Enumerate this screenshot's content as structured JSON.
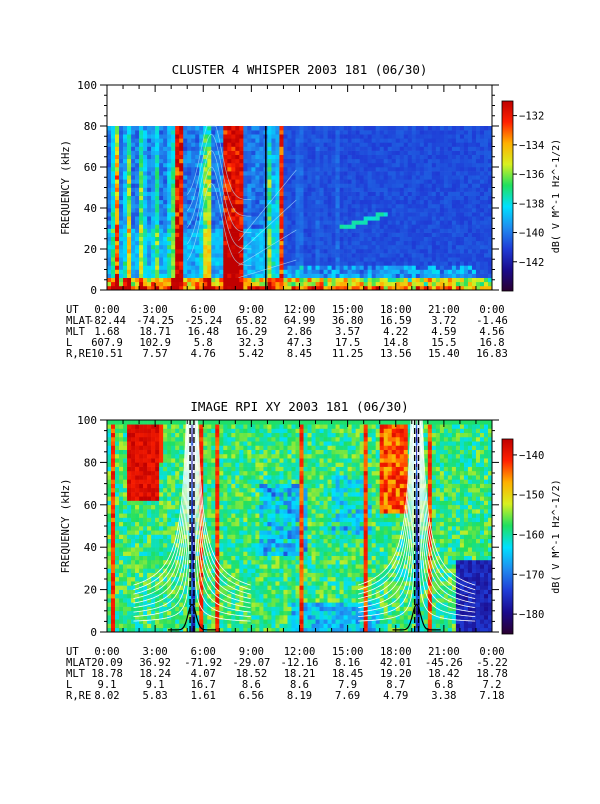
{
  "colors": {
    "background": "#ffffff",
    "foreground": "#000000",
    "colormap": [
      "#2a0030",
      "#1a0a8c",
      "#1f3cd6",
      "#1f8cf0",
      "#00e0ff",
      "#20e060",
      "#d8f020",
      "#ffb000",
      "#ff2000",
      "#c00000"
    ]
  },
  "chart_data": [
    {
      "type": "heatmap",
      "title": "CLUSTER 4 WHISPER 2003 181 (06/30)",
      "ylabel": "FREQUENCY (kHz)",
      "ylim": [
        0,
        100
      ],
      "yticks": [
        0,
        20,
        40,
        60,
        80,
        100
      ],
      "data_top_khz": 80,
      "xlim_hours": [
        0,
        24
      ],
      "xticks": [
        "0:00",
        "3:00",
        "6:00",
        "9:00",
        "12:00",
        "15:00",
        "18:00",
        "21:00",
        "0:00"
      ],
      "colorbar": {
        "label": "dB( V M^-1 Hz^-1/2)",
        "range": [
          -144,
          -131
        ],
        "ticks": [
          -132,
          -134,
          -136,
          -138,
          -140,
          -142
        ]
      },
      "marker_hours": [
        9.9
      ],
      "ephemeris": [
        {
          "label": "UT",
          "values": [
            "0:00",
            "3:00",
            "6:00",
            "9:00",
            "12:00",
            "15:00",
            "18:00",
            "21:00",
            "0:00"
          ]
        },
        {
          "label": "MLAT",
          "values": [
            "-82.44",
            "-74.25",
            "-25.24",
            "65.82",
            "64.99",
            "36.80",
            "16.59",
            "3.72",
            "-1.46"
          ]
        },
        {
          "label": "MLT",
          "values": [
            "1.68",
            "18.71",
            "16.48",
            "16.29",
            "2.86",
            "3.57",
            "4.22",
            "4.59",
            "4.56"
          ]
        },
        {
          "label": "L",
          "values": [
            "607.9",
            "102.9",
            "5.8",
            "32.3",
            "47.3",
            "17.5",
            "14.8",
            "15.5",
            "16.8"
          ]
        },
        {
          "label": "R,RE",
          "values": [
            "10.51",
            "7.57",
            "4.76",
            "5.42",
            "8.45",
            "11.25",
            "13.56",
            "15.40",
            "16.83"
          ]
        }
      ]
    },
    {
      "type": "heatmap",
      "title": "IMAGE RPI XY 2003 181 (06/30)",
      "ylabel": "FREQUENCY (kHz)",
      "ylim": [
        0,
        100
      ],
      "yticks": [
        0,
        20,
        40,
        60,
        80,
        100
      ],
      "data_top_khz": 100,
      "xlim_hours": [
        0,
        24
      ],
      "xticks": [
        "0:00",
        "3:00",
        "6:00",
        "9:00",
        "12:00",
        "15:00",
        "18:00",
        "21:00",
        "0:00"
      ],
      "colorbar": {
        "label": "dB( V M^-1 Hz^-1/2)",
        "range": [
          -185,
          -136
        ],
        "ticks": [
          -140,
          -150,
          -160,
          -170,
          -180
        ]
      },
      "perigee_hours": [
        5.3,
        19.3
      ],
      "ephemeris": [
        {
          "label": "UT",
          "values": [
            "0:00",
            "3:00",
            "6:00",
            "9:00",
            "12:00",
            "15:00",
            "18:00",
            "21:00",
            "0:00"
          ]
        },
        {
          "label": "MLAT",
          "values": [
            "20.09",
            "36.92",
            "-71.92",
            "-29.07",
            "-12.16",
            "8.16",
            "42.01",
            "-45.26",
            "-5.22"
          ]
        },
        {
          "label": "MLT",
          "values": [
            "18.78",
            "18.24",
            "4.07",
            "18.52",
            "18.21",
            "18.45",
            "19.20",
            "18.42",
            "18.78"
          ]
        },
        {
          "label": "L",
          "values": [
            "9.1",
            "9.1",
            "16.7",
            "8.6",
            "8.6",
            "7.9",
            "8.7",
            "6.8",
            "7.2"
          ]
        },
        {
          "label": "R,RE",
          "values": [
            "8.02",
            "5.83",
            "1.61",
            "6.56",
            "8.19",
            "7.69",
            "4.79",
            "3.38",
            "7.18"
          ]
        }
      ]
    }
  ]
}
